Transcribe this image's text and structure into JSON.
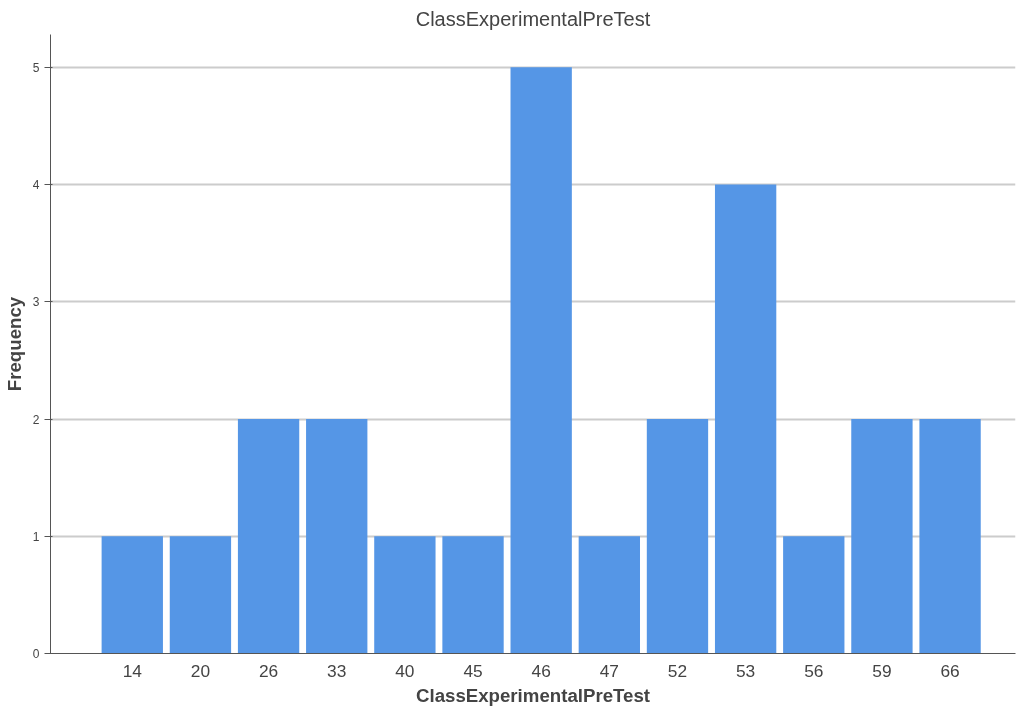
{
  "chart_data": {
    "type": "bar",
    "title": "ClassExperimentalPreTest",
    "xlabel": "ClassExperimentalPreTest",
    "ylabel": "Frequency",
    "categories": [
      "14",
      "20",
      "26",
      "33",
      "40",
      "45",
      "46",
      "47",
      "52",
      "53",
      "56",
      "59",
      "66"
    ],
    "values": [
      1,
      1,
      2,
      2,
      1,
      1,
      5,
      1,
      2,
      4,
      1,
      2,
      2
    ],
    "color": "#5596e6",
    "ylim": [
      0,
      5.28
    ],
    "yticks": [
      0,
      1,
      2,
      3,
      4,
      5
    ],
    "grid": "y"
  }
}
